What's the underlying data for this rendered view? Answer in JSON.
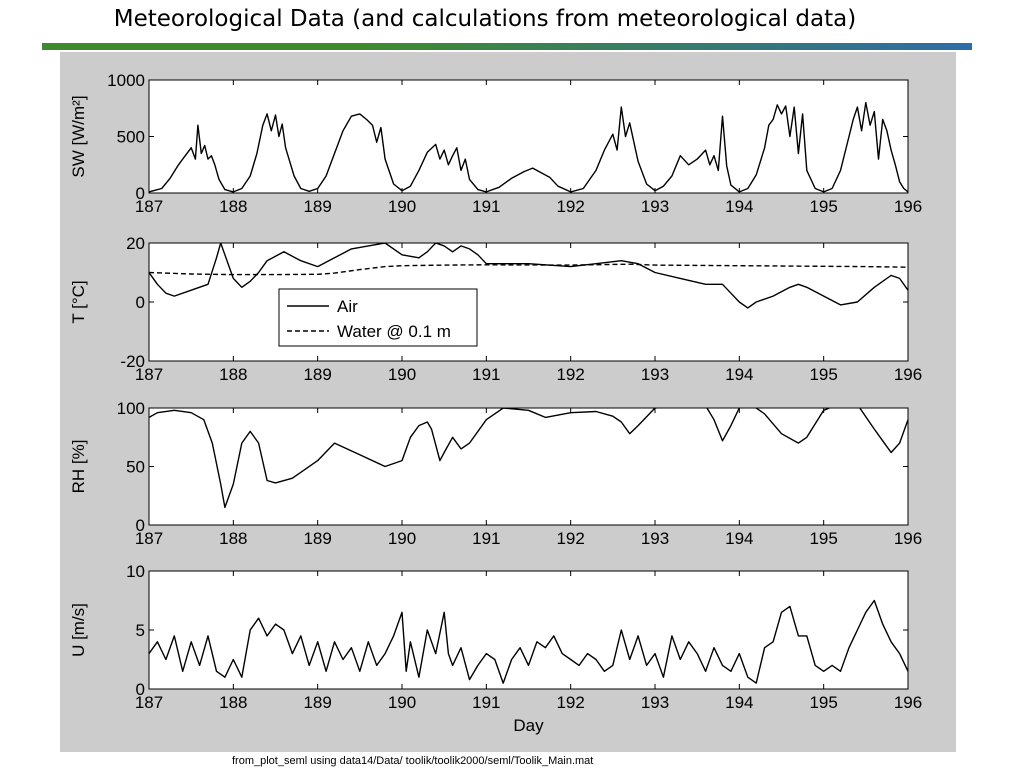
{
  "slide": {
    "title": "Meteorological Data (and calculations from meteorological data)",
    "footnote": "from_plot_seml using data14/Data/ toolik/toolik2000/seml/Toolik_Main.mat"
  },
  "colors": {
    "rule_green": "#3f8a2f",
    "rule_blue": "#2f6ca8",
    "panel_bg": "#cccccc"
  },
  "chart_data": [
    {
      "type": "line",
      "ylabel": "SW [W/m²]",
      "xlabel": "",
      "xlim": [
        187,
        196
      ],
      "ylim": [
        0,
        1000
      ],
      "xticks": [
        187,
        188,
        189,
        190,
        191,
        192,
        193,
        194,
        195,
        196
      ],
      "yticks": [
        0,
        500,
        1000
      ],
      "series": [
        {
          "style": "solid",
          "x": [
            187.0,
            187.15,
            187.25,
            187.35,
            187.42,
            187.5,
            187.55,
            187.58,
            187.62,
            187.66,
            187.7,
            187.74,
            187.78,
            187.83,
            187.9,
            188.0,
            188.1,
            188.2,
            188.28,
            188.35,
            188.4,
            188.45,
            188.5,
            188.54,
            188.58,
            188.62,
            188.66,
            188.72,
            188.8,
            188.9,
            189.0,
            189.1,
            189.2,
            189.3,
            189.4,
            189.5,
            189.58,
            189.65,
            189.7,
            189.75,
            189.8,
            189.9,
            190.0,
            190.1,
            190.2,
            190.3,
            190.4,
            190.45,
            190.5,
            190.55,
            190.6,
            190.65,
            190.7,
            190.75,
            190.8,
            190.9,
            191.0,
            191.15,
            191.3,
            191.45,
            191.55,
            191.65,
            191.75,
            191.85,
            192.0,
            192.15,
            192.3,
            192.4,
            192.5,
            192.55,
            192.6,
            192.65,
            192.7,
            192.75,
            192.8,
            192.9,
            193.0,
            193.1,
            193.2,
            193.3,
            193.4,
            193.5,
            193.6,
            193.65,
            193.7,
            193.75,
            193.8,
            193.85,
            193.9,
            194.0,
            194.1,
            194.2,
            194.3,
            194.35,
            194.4,
            194.45,
            194.5,
            194.55,
            194.6,
            194.65,
            194.7,
            194.75,
            194.8,
            194.9,
            195.0,
            195.1,
            195.2,
            195.3,
            195.35,
            195.4,
            195.45,
            195.5,
            195.55,
            195.6,
            195.65,
            195.7,
            195.75,
            195.8,
            195.85,
            195.9,
            195.95,
            196.0
          ],
          "y": [
            10,
            40,
            130,
            250,
            320,
            400,
            300,
            600,
            350,
            420,
            300,
            330,
            250,
            120,
            30,
            10,
            40,
            150,
            350,
            600,
            700,
            550,
            690,
            500,
            610,
            400,
            300,
            150,
            40,
            15,
            40,
            150,
            350,
            550,
            680,
            700,
            650,
            600,
            450,
            580,
            300,
            80,
            20,
            60,
            200,
            360,
            430,
            300,
            380,
            250,
            330,
            400,
            200,
            300,
            120,
            30,
            10,
            50,
            130,
            190,
            220,
            180,
            140,
            60,
            10,
            40,
            200,
            380,
            520,
            380,
            760,
            500,
            620,
            450,
            280,
            80,
            20,
            60,
            150,
            330,
            250,
            300,
            380,
            250,
            330,
            200,
            680,
            240,
            70,
            10,
            40,
            160,
            400,
            600,
            650,
            780,
            700,
            770,
            500,
            760,
            350,
            700,
            200,
            40,
            10,
            40,
            200,
            500,
            650,
            760,
            550,
            800,
            600,
            720,
            300,
            650,
            550,
            380,
            250,
            100,
            40,
            10
          ]
        }
      ]
    },
    {
      "type": "line",
      "ylabel": "T [°C]",
      "xlabel": "",
      "xlim": [
        187,
        196
      ],
      "ylim": [
        -20,
        20
      ],
      "xticks": [
        187,
        188,
        189,
        190,
        191,
        192,
        193,
        194,
        195,
        196
      ],
      "yticks": [
        -20,
        0,
        20
      ],
      "legend": {
        "position": "center-left",
        "entries": [
          "Air",
          "Water @ 0.1 m"
        ]
      },
      "series": [
        {
          "name": "Air",
          "style": "solid",
          "x": [
            187.0,
            187.1,
            187.2,
            187.3,
            187.5,
            187.7,
            187.8,
            187.85,
            187.9,
            188.0,
            188.1,
            188.2,
            188.3,
            188.4,
            188.6,
            188.8,
            189.0,
            189.2,
            189.4,
            189.6,
            189.8,
            190.0,
            190.2,
            190.3,
            190.4,
            190.5,
            190.6,
            190.7,
            190.8,
            190.9,
            191.0,
            191.2,
            191.5,
            192.0,
            192.3,
            192.6,
            192.8,
            193.0,
            193.3,
            193.6,
            193.8,
            193.9,
            194.0,
            194.1,
            194.2,
            194.4,
            194.6,
            194.7,
            194.8,
            195.0,
            195.2,
            195.4,
            195.6,
            195.8,
            195.9,
            196.0
          ],
          "y": [
            10,
            6,
            3,
            2,
            4,
            6,
            15,
            20,
            16,
            8,
            5,
            7,
            10,
            14,
            17,
            14,
            12,
            15,
            18,
            19,
            20,
            16,
            15,
            17,
            20,
            19,
            17,
            19,
            18,
            16,
            13,
            13,
            13,
            12,
            13,
            14,
            13,
            10,
            8,
            6,
            6,
            3,
            0,
            -2,
            0,
            2,
            5,
            6,
            5,
            2,
            -1,
            0,
            5,
            9,
            8,
            4
          ]
        },
        {
          "name": "Water @ 0.1 m",
          "style": "dashed",
          "x": [
            187.0,
            187.5,
            188.0,
            188.5,
            189.0,
            189.2,
            189.5,
            189.8,
            190.0,
            190.5,
            191.0,
            192.0,
            192.7,
            193.0,
            194.0,
            195.0,
            195.5,
            196.0
          ],
          "y": [
            10,
            9.5,
            9.3,
            9.3,
            9.4,
            9.8,
            11,
            12,
            12.3,
            12.5,
            12.6,
            12.5,
            12.8,
            12.5,
            12.3,
            12.1,
            12.0,
            11.8
          ]
        }
      ]
    },
    {
      "type": "line",
      "ylabel": "RH [%]",
      "xlabel": "",
      "xlim": [
        187,
        196
      ],
      "ylim": [
        0,
        100
      ],
      "xticks": [
        187,
        188,
        189,
        190,
        191,
        192,
        193,
        194,
        195,
        196
      ],
      "yticks": [
        0,
        50,
        100
      ],
      "series": [
        {
          "style": "solid",
          "x": [
            187.0,
            187.1,
            187.3,
            187.5,
            187.65,
            187.75,
            187.85,
            187.9,
            188.0,
            188.1,
            188.2,
            188.3,
            188.4,
            188.5,
            188.7,
            189.0,
            189.2,
            189.5,
            189.8,
            190.0,
            190.1,
            190.2,
            190.3,
            190.35,
            190.45,
            190.5,
            190.6,
            190.7,
            190.8,
            191.0,
            191.2,
            191.5,
            191.7,
            192.0,
            192.3,
            192.5,
            192.6,
            192.7,
            192.8,
            193.0,
            193.3,
            193.6,
            193.7,
            193.8,
            193.9,
            194.0,
            194.1,
            194.3,
            194.5,
            194.7,
            194.8,
            195.0,
            195.2,
            195.4,
            195.6,
            195.7,
            195.8,
            195.9,
            196.0
          ],
          "y": [
            92,
            96,
            98,
            96,
            90,
            70,
            35,
            15,
            35,
            70,
            80,
            70,
            38,
            36,
            40,
            55,
            70,
            60,
            50,
            55,
            75,
            85,
            88,
            82,
            55,
            62,
            75,
            65,
            70,
            90,
            100,
            98,
            92,
            96,
            97,
            93,
            88,
            78,
            85,
            100,
            102,
            102,
            90,
            72,
            85,
            100,
            105,
            95,
            78,
            70,
            75,
            98,
            104,
            103,
            82,
            72,
            62,
            70,
            90
          ]
        }
      ]
    },
    {
      "type": "line",
      "ylabel": "U [m/s]",
      "xlabel": "Day",
      "xlim": [
        187,
        196
      ],
      "ylim": [
        0,
        10
      ],
      "xticks": [
        187,
        188,
        189,
        190,
        191,
        192,
        193,
        194,
        195,
        196
      ],
      "yticks": [
        0,
        5,
        10
      ],
      "series": [
        {
          "style": "solid",
          "x": [
            187.0,
            187.1,
            187.2,
            187.3,
            187.4,
            187.5,
            187.6,
            187.7,
            187.8,
            187.9,
            188.0,
            188.1,
            188.2,
            188.3,
            188.4,
            188.5,
            188.6,
            188.7,
            188.8,
            188.9,
            189.0,
            189.1,
            189.2,
            189.3,
            189.4,
            189.5,
            189.6,
            189.7,
            189.8,
            189.9,
            190.0,
            190.05,
            190.1,
            190.2,
            190.3,
            190.4,
            190.5,
            190.55,
            190.6,
            190.7,
            190.8,
            190.9,
            191.0,
            191.1,
            191.2,
            191.3,
            191.4,
            191.5,
            191.6,
            191.7,
            191.8,
            191.9,
            192.0,
            192.1,
            192.2,
            192.3,
            192.4,
            192.5,
            192.6,
            192.7,
            192.8,
            192.9,
            193.0,
            193.1,
            193.2,
            193.3,
            193.4,
            193.5,
            193.6,
            193.7,
            193.8,
            193.9,
            194.0,
            194.1,
            194.2,
            194.3,
            194.4,
            194.5,
            194.6,
            194.7,
            194.8,
            194.9,
            195.0,
            195.1,
            195.2,
            195.3,
            195.4,
            195.5,
            195.6,
            195.7,
            195.8,
            195.9,
            196.0
          ],
          "y": [
            3,
            4,
            2.5,
            4.5,
            1.5,
            4,
            2,
            4.5,
            1.5,
            1,
            2.5,
            1,
            5,
            6,
            4.5,
            5.5,
            5,
            3,
            4.5,
            2,
            4,
            1.5,
            4,
            2.5,
            3.5,
            1.5,
            4,
            2,
            3,
            4.5,
            6.5,
            1.5,
            4,
            1,
            5,
            3,
            6.5,
            3,
            2,
            3.5,
            0.8,
            2,
            3,
            2.5,
            0.5,
            2.5,
            3.5,
            2,
            4,
            3.5,
            4.5,
            3,
            2.5,
            2,
            3,
            2.5,
            1.5,
            2,
            5,
            2.5,
            4.5,
            2,
            3,
            1,
            4.5,
            2.5,
            4,
            3,
            1.5,
            3.5,
            2,
            1.5,
            3,
            1,
            0.5,
            3.5,
            4,
            6.5,
            7,
            4.5,
            4.5,
            2,
            1.5,
            2,
            1.5,
            3.5,
            5,
            6.5,
            7.5,
            5.5,
            4,
            3,
            1.5
          ]
        }
      ]
    }
  ]
}
